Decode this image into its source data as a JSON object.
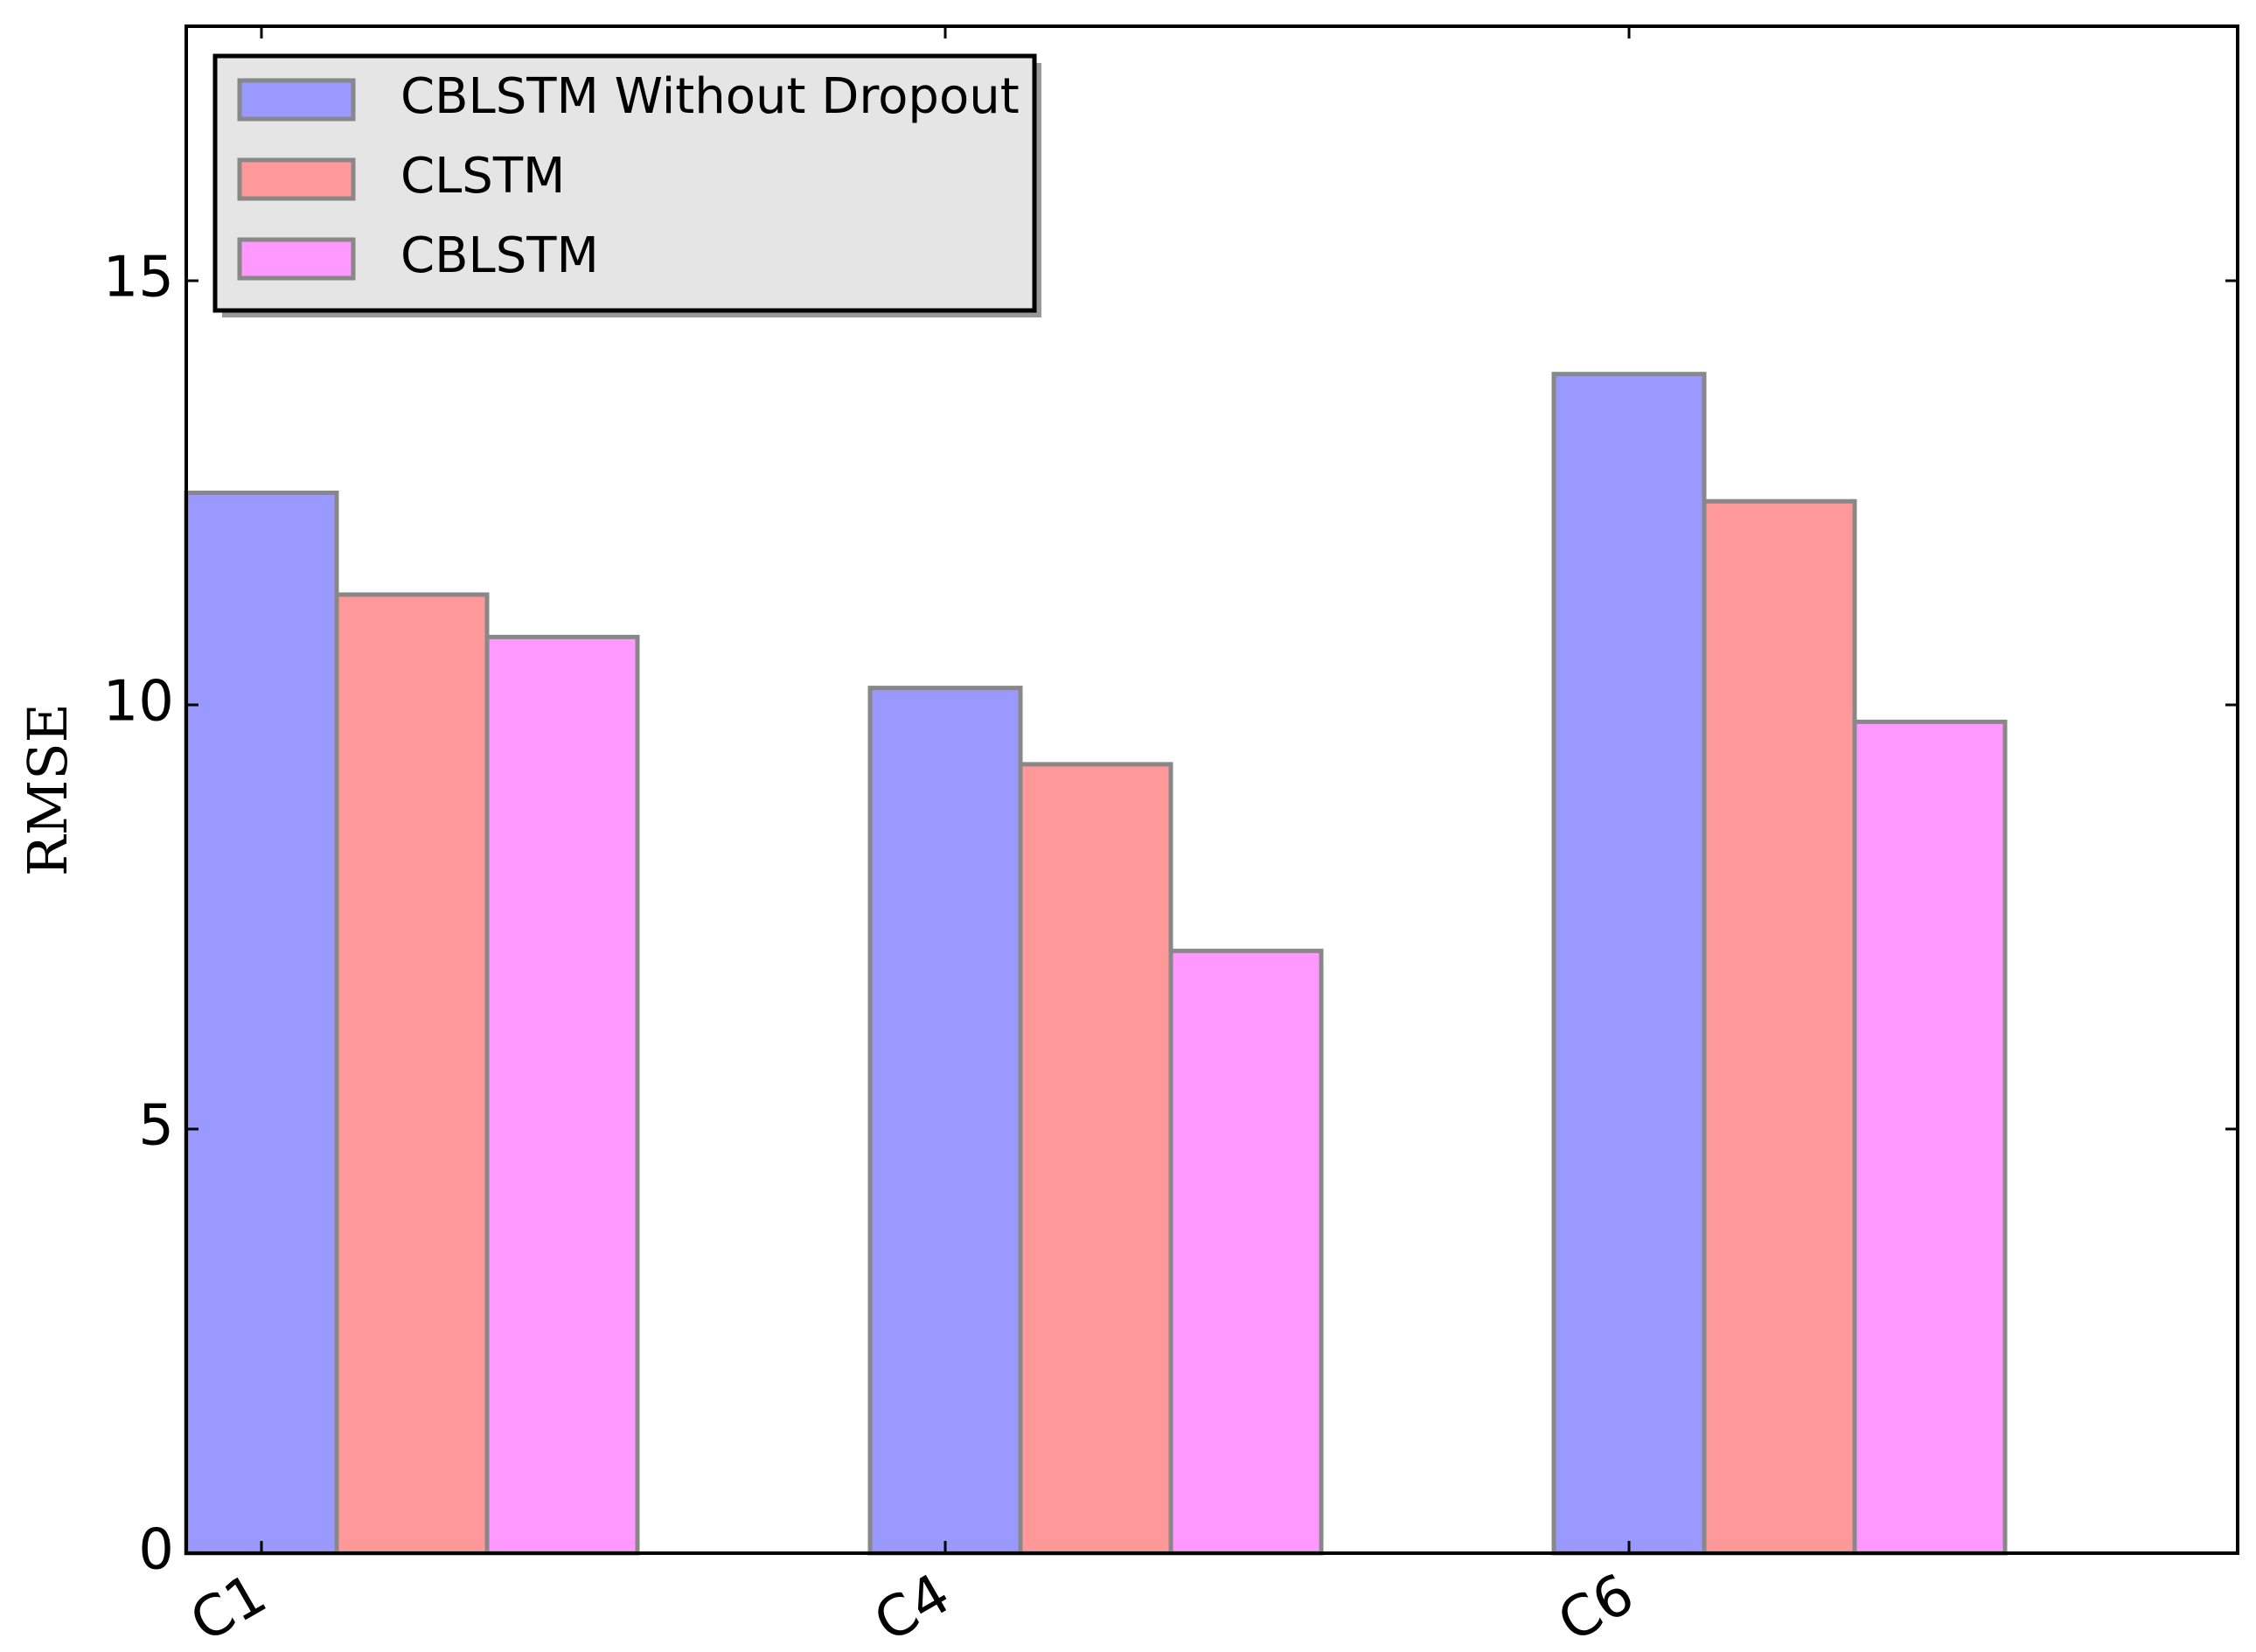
{
  "chart_data": {
    "type": "bar",
    "y_label": "RMSE",
    "categories": [
      "C1",
      "C4",
      "C6"
    ],
    "series": [
      {
        "name": "CBLSTM Without Dropout",
        "color": "#9999ff",
        "values": [
          12.5,
          10.2,
          13.9
        ]
      },
      {
        "name": "CLSTM",
        "color": "#ff9999",
        "values": [
          11.3,
          9.3,
          12.4
        ]
      },
      {
        "name": "CBLSTM",
        "color": "#ff99ff",
        "values": [
          10.8,
          7.1,
          9.8
        ]
      }
    ],
    "ylim": [
      0,
      18
    ],
    "yticks": [
      0,
      5,
      10,
      15
    ],
    "grid": false,
    "legend": "upper left"
  }
}
